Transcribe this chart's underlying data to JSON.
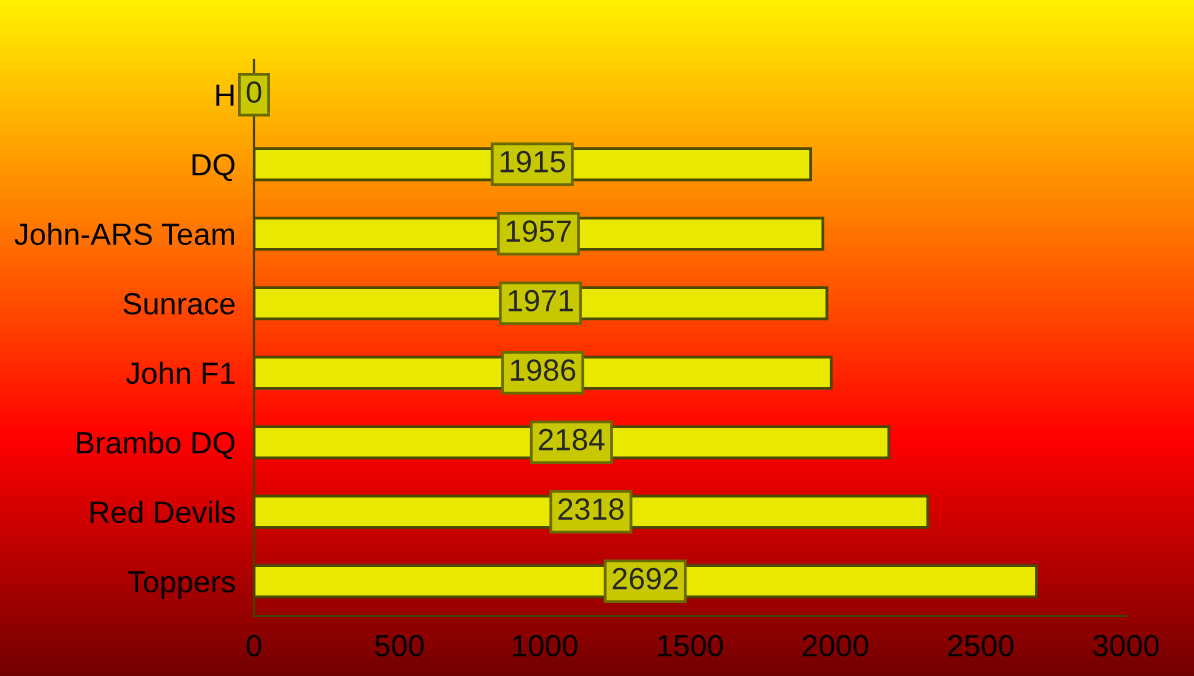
{
  "chart_data": {
    "type": "bar",
    "orientation": "horizontal",
    "categories": [
      "H",
      "DQ",
      "John-ARS Team",
      "Sunrace",
      "John F1",
      "Brambo DQ",
      "Red Devils",
      "Toppers"
    ],
    "values": [
      0,
      1915,
      1957,
      1971,
      1986,
      2184,
      2318,
      2692
    ],
    "color": "#e8e800",
    "xlim": [
      0,
      3000
    ],
    "xticks": [
      0,
      500,
      1000,
      1500,
      2000,
      2500,
      3000
    ],
    "data_labels": true,
    "grid": false,
    "legend": false
  }
}
